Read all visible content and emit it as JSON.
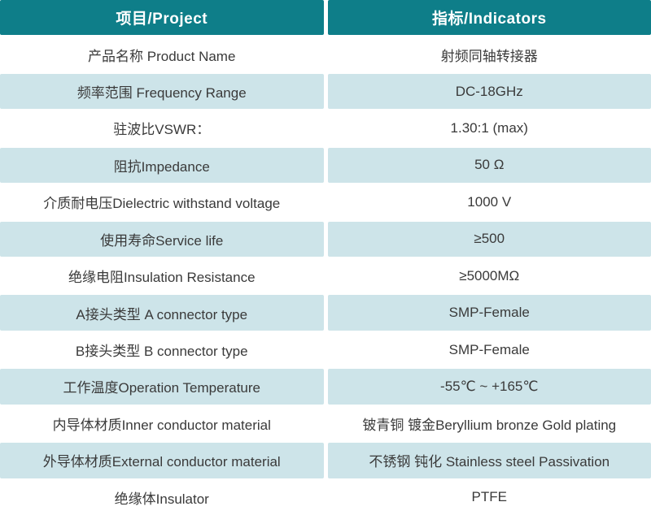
{
  "table": {
    "header": {
      "project_label": "项目/Project",
      "indicators_label": "指标/Indicators"
    },
    "rows": [
      {
        "project": "产品名称 Product Name",
        "indicator": "射频同轴转接器"
      },
      {
        "project": "频率范围 Frequency Range",
        "indicator": "DC-18GHz"
      },
      {
        "project": "驻波比VSWR：",
        "indicator": "1.30:1 (max)"
      },
      {
        "project": "阻抗Impedance",
        "indicator": "50 Ω"
      },
      {
        "project": "介质耐电压Dielectric withstand voltage",
        "indicator": "1000 V"
      },
      {
        "project": "使用寿命Service life",
        "indicator": "≥500"
      },
      {
        "project": "绝缘电阻Insulation Resistance",
        "indicator": "≥5000MΩ"
      },
      {
        "project": "A接头类型 A connector type",
        "indicator": "SMP-Female"
      },
      {
        "project": "B接头类型 B connector type",
        "indicator": "SMP-Female"
      },
      {
        "project": "工作温度Operation Temperature",
        "indicator": "-55℃ ~ +165℃"
      },
      {
        "project": "内导体材质Inner conductor material",
        "indicator": "铍青铜 镀金Beryllium bronze Gold plating"
      },
      {
        "project": "外导体材质External conductor material",
        "indicator": "不锈钢 钝化 Stainless steel Passivation"
      },
      {
        "project": "绝缘体Insulator",
        "indicator": "PTFE"
      }
    ],
    "colors": {
      "header_bg": "#0E7E89",
      "header_text": "#FFFFFF",
      "row_bg": "#FFFFFF",
      "alt_row_bg": "#CDE4E9",
      "body_text": "#3A3A3A",
      "divider": "#FFFFFF"
    }
  }
}
